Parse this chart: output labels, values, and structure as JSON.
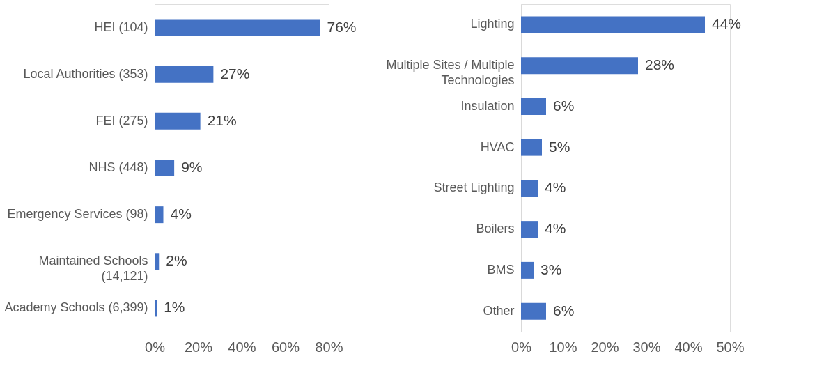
{
  "chart_data": [
    {
      "type": "bar",
      "orientation": "horizontal",
      "categories": [
        "HEI (104)",
        "Local Authorities (353)",
        "FEI (275)",
        "NHS (448)",
        "Emergency Services (98)",
        "Maintained Schools (14,121)",
        "Academy Schools (6,399)"
      ],
      "series": [
        {
          "color": "#4472c4",
          "values": [
            76,
            27,
            21,
            9,
            4,
            2,
            1
          ]
        }
      ],
      "value_labels": [
        "76%",
        "27%",
        "21%",
        "9%",
        "4%",
        "2%",
        "1%"
      ],
      "xlim": [
        0,
        80
      ],
      "xticks": [
        {
          "value": 0,
          "label": "0%"
        },
        {
          "value": 20,
          "label": "20%"
        },
        {
          "value": 40,
          "label": "40%"
        },
        {
          "value": 60,
          "label": "60%"
        },
        {
          "value": 80,
          "label": "80%"
        }
      ]
    },
    {
      "type": "bar",
      "orientation": "horizontal",
      "categories": [
        "Lighting",
        "Multiple Sites / Multiple Technologies",
        "Insulation",
        "HVAC",
        "Street Lighting",
        "Boilers",
        "BMS",
        "Other"
      ],
      "series": [
        {
          "color": "#4472c4",
          "values": [
            44,
            28,
            6,
            5,
            4,
            4,
            3,
            6
          ]
        }
      ],
      "value_labels": [
        "44%",
        "28%",
        "6%",
        "5%",
        "4%",
        "4%",
        "3%",
        "6%"
      ],
      "xlim": [
        0,
        50
      ],
      "xticks": [
        {
          "value": 0,
          "label": "0%"
        },
        {
          "value": 10,
          "label": "10%"
        },
        {
          "value": 20,
          "label": "20%"
        },
        {
          "value": 30,
          "label": "30%"
        },
        {
          "value": 40,
          "label": "40%"
        },
        {
          "value": 50,
          "label": "50%"
        }
      ]
    }
  ]
}
